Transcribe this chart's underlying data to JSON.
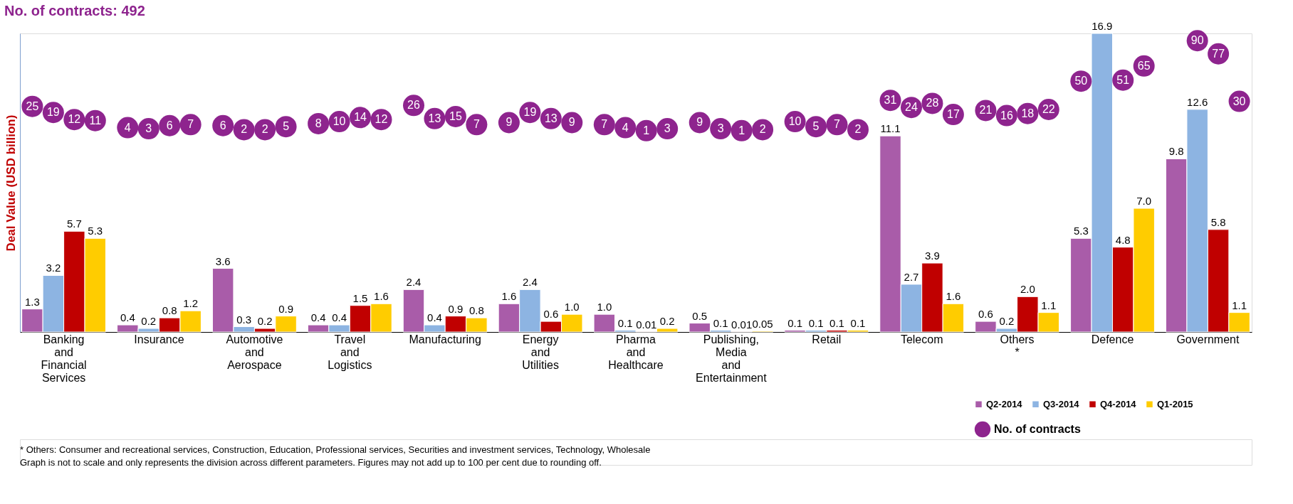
{
  "chart_data": {
    "type": "bar",
    "title": "No. of contracts: 492",
    "ylabel": "Deal Value (USD billion)",
    "categories": [
      "Banking and Financial Services",
      "Insurance",
      "Automotive and Aerospace",
      "Travel and Logistics",
      "Manufacturing",
      "Energy and Utilities",
      "Pharma and Healthcare",
      "Publishing, Media and Entertainment",
      "Retail",
      "Telecom",
      "Others *",
      "Defence",
      "Government"
    ],
    "series": [
      {
        "name": "Q2-2014",
        "color": "#a95ca9",
        "values": [
          1.3,
          0.4,
          3.6,
          0.4,
          2.4,
          1.6,
          1.0,
          0.5,
          0.1,
          11.1,
          0.6,
          5.3,
          9.8
        ],
        "value_labels": [
          "1.3",
          "0.4",
          "3.6",
          "0.4",
          "2.4",
          "1.6",
          "1.0",
          "0.5",
          "0.1",
          "11.1",
          "0.6",
          "5.3",
          "9.8"
        ]
      },
      {
        "name": "Q3-2014",
        "color": "#8db4e2",
        "values": [
          3.2,
          0.2,
          0.3,
          0.4,
          0.4,
          2.4,
          0.1,
          0.1,
          0.1,
          2.7,
          0.2,
          16.9,
          12.6
        ],
        "value_labels": [
          "3.2",
          "0.2",
          "0.3",
          "0.4",
          "0.4",
          "2.4",
          "0.1",
          "0.1",
          "0.1",
          "2.7",
          "0.2",
          "16.9",
          "12.6"
        ]
      },
      {
        "name": "Q4-2014",
        "color": "#c00000",
        "values": [
          5.7,
          0.8,
          0.2,
          1.5,
          0.9,
          0.6,
          0.01,
          0.01,
          0.1,
          3.9,
          2,
          4.8,
          5.8
        ],
        "value_labels": [
          "5.7",
          "0.8",
          "0.2",
          "1.5",
          "0.9",
          "0.6",
          "0.01",
          "0.01",
          "0.1",
          "3.9",
          "2.0",
          "4.8",
          "5.8"
        ]
      },
      {
        "name": "Q1-2015",
        "color": "#ffcc00",
        "values": [
          5.3,
          1.2,
          0.9,
          1.6,
          0.8,
          1,
          0.2,
          0.05,
          0.1,
          1.6,
          1.1,
          7,
          1.1
        ],
        "value_labels": [
          "5.3",
          "1.2",
          "0.9",
          "1.6",
          "0.8",
          "1.0",
          "0.2",
          "0.05",
          "0.1",
          "1.6",
          "1.1",
          "7.0",
          "1.1"
        ]
      },
      {
        "name": "No. of contracts",
        "type": "scatter",
        "axis": "y2",
        "color": "#8e248e",
        "x": [
          "Banking and Financial Services",
          "Banking and Financial Services",
          "Banking and Financial Services",
          "Banking and Financial Services",
          "Insurance",
          "Insurance",
          "Insurance",
          "Insurance",
          "Automotive and Aerospace",
          "Automotive and Aerospace",
          "Automotive and Aerospace",
          "Automotive and Aerospace",
          "Travel and Logistics",
          "Travel and Logistics",
          "Travel and Logistics",
          "Travel and Logistics",
          "Manufacturing",
          "Manufacturing",
          "Manufacturing",
          "Manufacturing",
          "Energy and Utilities",
          "Energy and Utilities",
          "Energy and Utilities",
          "Energy and Utilities",
          "Pharma and Healthcare",
          "Pharma and Healthcare",
          "Pharma and Healthcare",
          "Pharma and Healthcare",
          "Publishing, Media and Entertainment",
          "Publishing, Media and Entertainment",
          "Publishing, Media and Entertainment",
          "Publishing, Media and Entertainment",
          "Retail",
          "Retail",
          "Retail",
          "Retail",
          "Telecom",
          "Telecom",
          "Telecom",
          "Telecom",
          "Others *",
          "Others *",
          "Others *",
          "Others *",
          "Defence",
          "Defence",
          "Defence",
          "Defence",
          "Government",
          "Government",
          "Government",
          "Government"
        ],
        "values": [
          25,
          19,
          12,
          11,
          4,
          3,
          6,
          7,
          6,
          2,
          2,
          5,
          8,
          10,
          14,
          12,
          26,
          13,
          15,
          7,
          9,
          19,
          13,
          9,
          7,
          4,
          1,
          3,
          9,
          3,
          1,
          2,
          10,
          5,
          7,
          2,
          31,
          24,
          28,
          17,
          21,
          16,
          18,
          22,
          50,
          null,
          51,
          65,
          null,
          90,
          77,
          30
        ]
      }
    ],
    "data_labels": true,
    "marker": "circle",
    "tick_labels": "x",
    "grid": false,
    "legend": "bottom right",
    "annotations": [
      "* Others: Consumer and recreational services, Construction, Education, Professional services, Securities and investment services, Technology, Wholesale",
      "Graph is not to scale and only represents the division across different parameters. Figures may not add up to 100 per cent due to rounding off."
    ]
  }
}
